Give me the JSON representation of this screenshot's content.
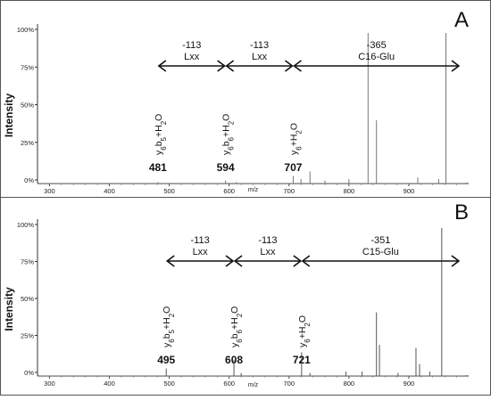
{
  "chart_data": [
    {
      "type": "bar",
      "panel_label": "A",
      "xlabel": "m/z",
      "ylabel": "Intensity",
      "xlim": [
        280,
        1000
      ],
      "ylim": [
        0,
        100
      ],
      "x_ticks": [
        "300",
        "400",
        "500",
        "600",
        "700",
        "800",
        "900"
      ],
      "y_ticks": [
        "0%",
        "25%",
        "50%",
        "75%",
        "100%"
      ],
      "peaks": [
        {
          "x": 481,
          "y": 1
        },
        {
          "x": 594,
          "y": 2
        },
        {
          "x": 612,
          "y": 1
        },
        {
          "x": 707,
          "y": 5
        },
        {
          "x": 720,
          "y": 3
        },
        {
          "x": 735,
          "y": 8
        },
        {
          "x": 760,
          "y": 2
        },
        {
          "x": 800,
          "y": 3
        },
        {
          "x": 832,
          "y": 100
        },
        {
          "x": 846,
          "y": 42
        },
        {
          "x": 915,
          "y": 4
        },
        {
          "x": 950,
          "y": 3
        },
        {
          "x": 962,
          "y": 100
        }
      ],
      "peak_labels": [
        {
          "x": 481,
          "mass": "481",
          "ion": "y",
          "sub": "6",
          "ion2": "b",
          "sub2": "5",
          "suffix": "+H",
          "sub3": "2",
          "tail": "O"
        },
        {
          "x": 594,
          "mass": "594",
          "ion": "y",
          "sub": "6",
          "ion2": "b",
          "sub2": "6",
          "suffix": "+H",
          "sub3": "2",
          "tail": "O"
        },
        {
          "x": 707,
          "mass": "707",
          "ion": "y",
          "sub": "6",
          "ion2": "",
          "sub2": "",
          "suffix": "+H",
          "sub3": "2",
          "tail": "O"
        }
      ],
      "annotations": [
        {
          "from": 481,
          "to": 594,
          "top": "-113",
          "bottom": "Lxx"
        },
        {
          "from": 594,
          "to": 707,
          "top": "-113",
          "bottom": "Lxx"
        },
        {
          "from": 707,
          "to": 985,
          "top": "-365",
          "bottom": "C16-Glu"
        }
      ]
    },
    {
      "type": "bar",
      "panel_label": "B",
      "xlabel": "m/z",
      "ylabel": "Intensity",
      "xlim": [
        280,
        1000
      ],
      "ylim": [
        0,
        100
      ],
      "x_ticks": [
        "300",
        "400",
        "500",
        "600",
        "700",
        "800",
        "900"
      ],
      "y_ticks": [
        "0%",
        "25%",
        "50%",
        "75%",
        "100%"
      ],
      "peaks": [
        {
          "x": 495,
          "y": 5
        },
        {
          "x": 608,
          "y": 11
        },
        {
          "x": 620,
          "y": 2
        },
        {
          "x": 721,
          "y": 16
        },
        {
          "x": 735,
          "y": 2
        },
        {
          "x": 795,
          "y": 3
        },
        {
          "x": 822,
          "y": 3
        },
        {
          "x": 846,
          "y": 43
        },
        {
          "x": 851,
          "y": 21
        },
        {
          "x": 882,
          "y": 2
        },
        {
          "x": 912,
          "y": 19
        },
        {
          "x": 918,
          "y": 8
        },
        {
          "x": 935,
          "y": 3
        },
        {
          "x": 955,
          "y": 100
        }
      ],
      "peak_labels": [
        {
          "x": 495,
          "mass": "495",
          "ion": "y",
          "sub": "6",
          "ion2": "b",
          "sub2": "5",
          "suffix": "+H",
          "sub3": "2",
          "tail": "O"
        },
        {
          "x": 608,
          "mass": "608",
          "ion": "y",
          "sub": "6",
          "ion2": "b",
          "sub2": "6",
          "suffix": "+H",
          "sub3": "2",
          "tail": "O"
        },
        {
          "x": 721,
          "mass": "721",
          "ion": "y",
          "sub": "6",
          "ion2": "",
          "sub2": "",
          "suffix": "+H",
          "sub3": "2",
          "tail": "O"
        }
      ],
      "annotations": [
        {
          "from": 495,
          "to": 608,
          "top": "-113",
          "bottom": "Lxx"
        },
        {
          "from": 608,
          "to": 721,
          "top": "-113",
          "bottom": "Lxx"
        },
        {
          "from": 721,
          "to": 985,
          "top": "-351",
          "bottom": "C15-Glu"
        }
      ]
    }
  ]
}
